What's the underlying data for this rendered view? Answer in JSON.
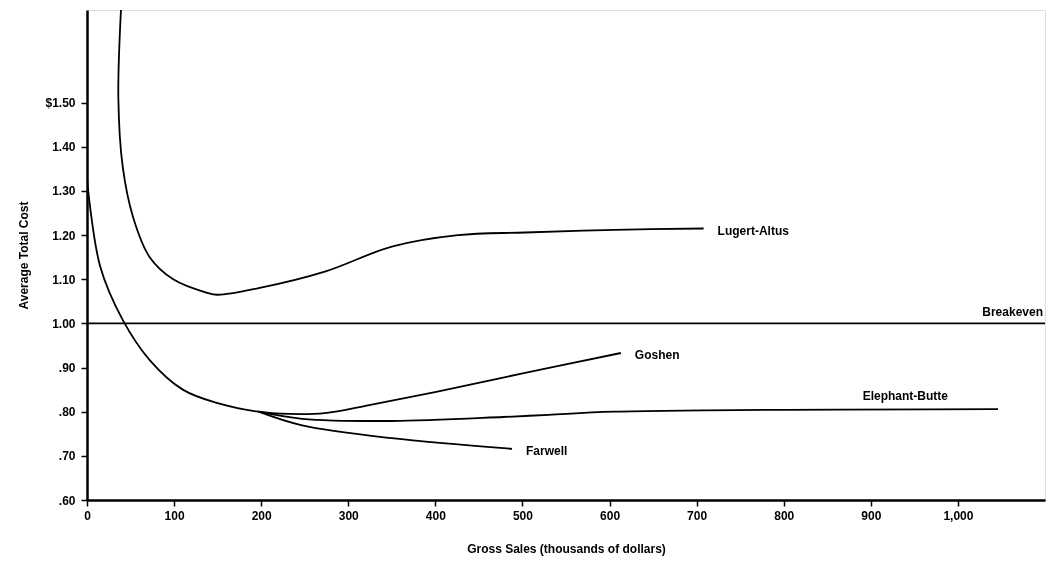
{
  "chart_data": {
    "type": "line",
    "xlabel": "Gross Sales (thousands of dollars)",
    "ylabel": "Average Total Cost",
    "xlim": [
      0,
      1100
    ],
    "ylim": [
      0.6,
      1.71
    ],
    "xticks": [
      0,
      100,
      200,
      300,
      400,
      500,
      600,
      700,
      800,
      900,
      {
        "value": 1000,
        "label": "1,000"
      }
    ],
    "yticks": [
      {
        "value": 0.6,
        "label": ".60"
      },
      {
        "value": 0.7,
        "label": ".70"
      },
      {
        "value": 0.8,
        "label": ".80"
      },
      {
        "value": 0.9,
        "label": ".90"
      },
      {
        "value": 1.0,
        "label": "1.00"
      },
      {
        "value": 1.1,
        "label": "1.10"
      },
      {
        "value": 1.2,
        "label": "1.20"
      },
      {
        "value": 1.3,
        "label": "1.30"
      },
      {
        "value": 1.4,
        "label": "1.40"
      },
      {
        "value": 1.5,
        "label": "$1.50"
      }
    ],
    "grid": false,
    "marker": "none",
    "line_style": "solid",
    "series": [
      {
        "name": "Lugert-Altus",
        "color": "#000000",
        "x": [
          39,
          36,
          41,
          53,
          72,
          99,
          137,
          150,
          197,
          274,
          350,
          426,
          503,
          606,
          708
        ],
        "values": [
          1.71,
          1.51,
          1.355,
          1.24,
          1.15,
          1.1,
          1.07,
          1.065,
          1.08,
          1.118,
          1.174,
          1.2,
          1.206,
          1.212,
          1.215
        ]
      },
      {
        "name": "Goshen",
        "color": "#000000",
        "x": [
          0,
          15,
          41,
          72,
          110,
          149,
          197,
          232,
          273,
          324,
          401,
          503,
          613
        ],
        "values": [
          1.326,
          1.13,
          1.008,
          0.917,
          0.85,
          0.82,
          0.8,
          0.795,
          0.797,
          0.815,
          0.845,
          0.888,
          0.933
        ]
      },
      {
        "name": "Elephant-Butte",
        "color": "#000000",
        "x": [
          197,
          247,
          350,
          478,
          530,
          606,
          1046
        ],
        "values": [
          0.8,
          0.784,
          0.779,
          0.788,
          0.793,
          0.8,
          0.806
        ]
      },
      {
        "name": "Farwell",
        "color": "#000000",
        "x": [
          197,
          247,
          350,
          488
        ],
        "values": [
          0.8,
          0.769,
          0.74,
          0.716
        ]
      }
    ],
    "ref_lines": [
      {
        "axis": "y",
        "value": 1.0,
        "label": "Breakeven",
        "color": "#000000",
        "line_style": "solid"
      }
    ]
  }
}
